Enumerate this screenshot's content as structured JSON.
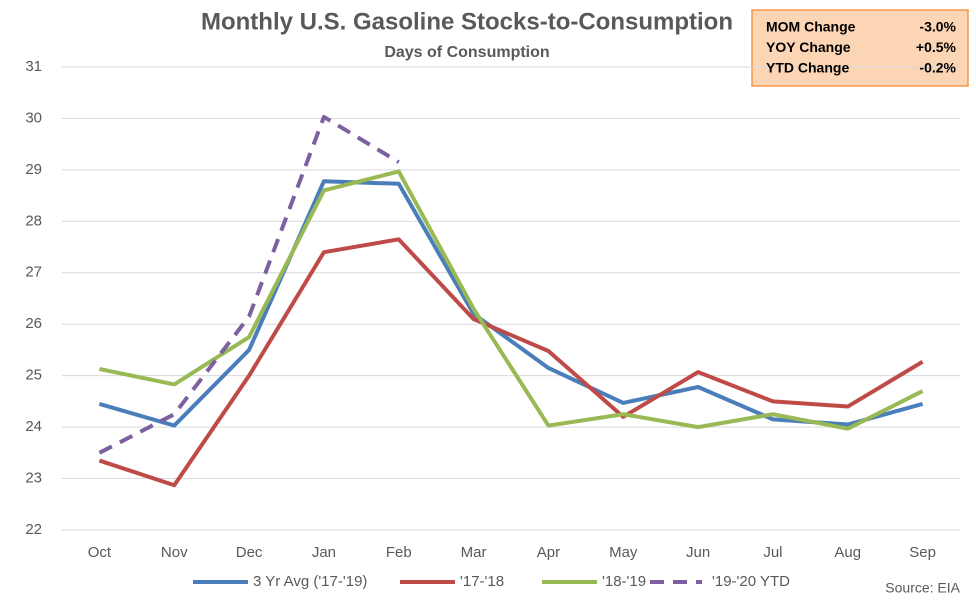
{
  "chart_data": {
    "type": "line",
    "title": "Monthly U.S. Gasoline Stocks-to-Consumption",
    "subtitle": "Days of Consumption",
    "categories": [
      "Oct",
      "Nov",
      "Dec",
      "Jan",
      "Feb",
      "Mar",
      "Apr",
      "May",
      "Jun",
      "Jul",
      "Aug",
      "Sep"
    ],
    "series": [
      {
        "name": "3 Yr Avg ('17-'19)",
        "color": "#4a7ebb",
        "values": [
          24.45,
          24.03,
          25.5,
          28.78,
          28.73,
          26.2,
          25.15,
          24.47,
          24.78,
          24.15,
          24.05,
          24.45
        ]
      },
      {
        "name": "'17-'18",
        "color": "#be4b48",
        "values": [
          23.35,
          22.87,
          25.0,
          27.4,
          27.65,
          26.1,
          25.48,
          24.2,
          25.07,
          24.5,
          24.4,
          25.27
        ]
      },
      {
        "name": "'18-'19",
        "color": "#98b954",
        "values": [
          25.13,
          24.83,
          25.75,
          28.6,
          28.97,
          26.3,
          24.03,
          24.25,
          24.0,
          24.25,
          23.97,
          24.7
        ]
      },
      {
        "name": "'19-'20 YTD",
        "color": "#7d60a0",
        "dashed": true,
        "values": [
          23.5,
          24.25,
          26.15,
          30.03,
          29.15,
          null,
          null,
          null,
          null,
          null,
          null,
          null
        ]
      }
    ],
    "ylim": [
      22,
      31
    ],
    "yticks": [
      22,
      23,
      24,
      25,
      26,
      27,
      28,
      29,
      30,
      31
    ],
    "grid": true,
    "legend": "bottom",
    "source": "Source: EIA",
    "info_box": {
      "rows": [
        [
          "MOM Change",
          "-3.0%"
        ],
        [
          "YOY Change",
          "+0.5%"
        ],
        [
          "YTD Change",
          "-0.2%"
        ]
      ]
    }
  }
}
